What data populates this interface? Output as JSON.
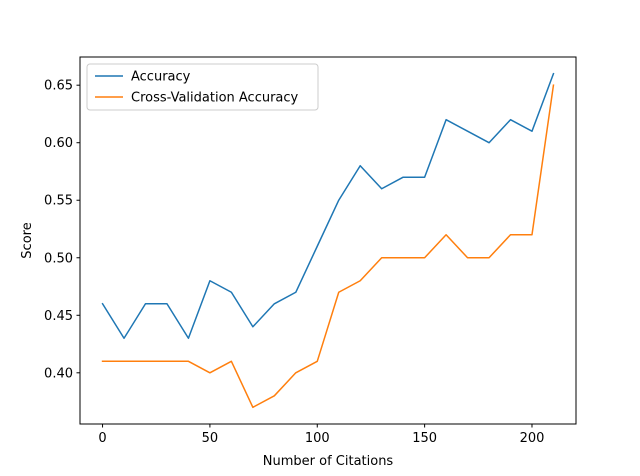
{
  "chart_data": {
    "type": "line",
    "title": "",
    "xlabel": "Number of Citations",
    "ylabel": "Score",
    "x": [
      0,
      10,
      20,
      30,
      40,
      50,
      60,
      70,
      80,
      90,
      100,
      110,
      120,
      130,
      140,
      150,
      160,
      170,
      180,
      190,
      200,
      210
    ],
    "series": [
      {
        "name": "Accuracy",
        "color": "#1f77b4",
        "values": [
          0.46,
          0.43,
          0.46,
          0.46,
          0.43,
          0.48,
          0.47,
          0.44,
          0.46,
          0.47,
          0.51,
          0.55,
          0.58,
          0.56,
          0.57,
          0.57,
          0.62,
          0.61,
          0.6,
          0.62,
          0.61,
          0.66
        ]
      },
      {
        "name": "Cross-Validation Accuracy",
        "color": "#ff7f0e",
        "values": [
          0.41,
          0.41,
          0.41,
          0.41,
          0.41,
          0.4,
          0.41,
          0.37,
          0.38,
          0.4,
          0.41,
          0.47,
          0.48,
          0.5,
          0.5,
          0.5,
          0.52,
          0.5,
          0.5,
          0.52,
          0.52,
          0.65
        ]
      }
    ],
    "xlim": [
      -10.5,
      220.5
    ],
    "ylim": [
      0.3555,
      0.6745
    ],
    "xticks": [
      0,
      50,
      100,
      150,
      200
    ],
    "xtick_labels": [
      "0",
      "50",
      "100",
      "150",
      "200"
    ],
    "yticks": [
      0.4,
      0.45,
      0.5,
      0.55,
      0.6,
      0.65
    ],
    "ytick_labels": [
      "0.40",
      "0.45",
      "0.50",
      "0.55",
      "0.60",
      "0.65"
    ],
    "grid": false,
    "legend_position": "top-left"
  }
}
